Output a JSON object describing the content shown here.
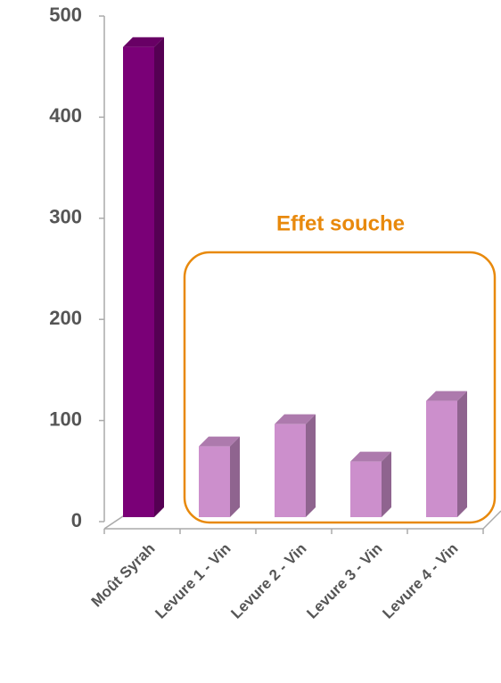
{
  "chart_data": {
    "type": "bar3d",
    "categories": [
      "Moût Syrah",
      "Levure 1 - Vin",
      "Levure 2 - Vin",
      "Levure 3 - Vin",
      "Levure 4 - Vin"
    ],
    "values": [
      465,
      70,
      92,
      55,
      115
    ],
    "colors": [
      "#7a0077",
      "#cc8fcc",
      "#cc8fcc",
      "#cc8fcc",
      "#cc8fcc"
    ],
    "ylim": [
      0,
      500
    ],
    "yticks": [
      0,
      100,
      200,
      300,
      400,
      500
    ],
    "annotation": {
      "text": "Effet souche",
      "color": "#e8890c"
    }
  }
}
